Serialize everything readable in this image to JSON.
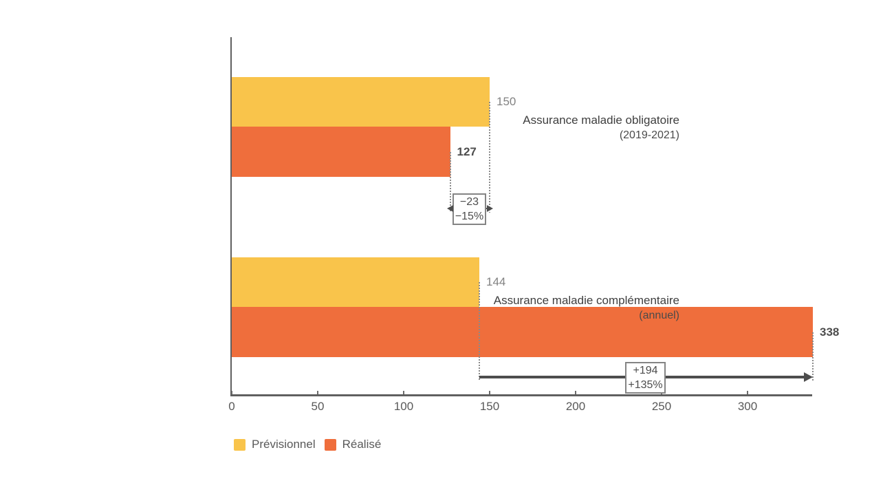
{
  "chart_data": {
    "type": "bar",
    "orientation": "horizontal",
    "categories": [
      {
        "label": "Assurance maladie obligatoire",
        "sublabel": "(2019-2021)"
      },
      {
        "label": "Assurance maladie complémentaire",
        "sublabel": "(annuel)"
      }
    ],
    "series": [
      {
        "name": "Prévisionnel",
        "color": "#F9C44B",
        "value_label_style": "muted",
        "values": [
          150,
          144
        ]
      },
      {
        "name": "Réalisé",
        "color": "#EF6E3C",
        "value_label_style": "strong",
        "values": [
          127,
          338
        ]
      }
    ],
    "x_axis": {
      "ticks": [
        0,
        50,
        100,
        150,
        200,
        250,
        300
      ],
      "max": 338
    },
    "ylim_note": "x axis from 0 to 338",
    "grid": false,
    "annotations": [
      {
        "category_index": 0,
        "lines": [
          "−23",
          "−15%"
        ],
        "style": "double-headed"
      },
      {
        "category_index": 1,
        "lines": [
          "+194",
          "+135%"
        ],
        "style": "single-headed"
      }
    ],
    "legend": [
      {
        "label": "Prévisionnel",
        "color": "#F9C44B"
      },
      {
        "label": "Réalisé",
        "color": "#EF6E3C"
      }
    ],
    "legend_position": "bottom-left"
  },
  "colors": {
    "axis": "#5f5f5f",
    "arrow": "#4d4d4d",
    "dashed_line": "#8a8a8a",
    "annotation_border": "#848484",
    "annotation_text": "#4d4d4d",
    "text_dark": "#3e3e3e",
    "text_muted": "#828282",
    "background": "#ffffff"
  }
}
